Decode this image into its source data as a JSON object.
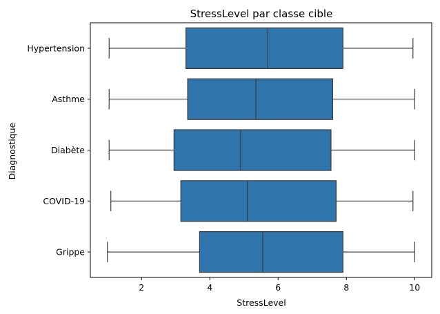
{
  "chart_data": {
    "type": "boxplot",
    "orientation": "horizontal",
    "title": "StressLevel par classe cible",
    "xlabel": "StressLevel",
    "ylabel": "Diagnostique",
    "xlim": [
      0.5,
      10.5
    ],
    "xticks": [
      2,
      4,
      6,
      8,
      10
    ],
    "grid": false,
    "box_color": "#2e74ad",
    "line_color": "#3d3d3d",
    "categories": [
      "Hypertension",
      "Asthme",
      "Diabète",
      "COVID-19",
      "Grippe"
    ],
    "boxes": [
      {
        "label": "Hypertension",
        "whislo": 1.05,
        "q1": 3.3,
        "med": 5.7,
        "q3": 7.9,
        "whishi": 9.95
      },
      {
        "label": "Asthme",
        "whislo": 1.05,
        "q1": 3.35,
        "med": 5.35,
        "q3": 7.6,
        "whishi": 10.0
      },
      {
        "label": "Diabète",
        "whislo": 1.05,
        "q1": 2.95,
        "med": 4.9,
        "q3": 7.55,
        "whishi": 10.0
      },
      {
        "label": "COVID-19",
        "whislo": 1.1,
        "q1": 3.15,
        "med": 5.1,
        "q3": 7.7,
        "whishi": 9.95
      },
      {
        "label": "Grippe",
        "whislo": 1.0,
        "q1": 3.7,
        "med": 5.55,
        "q3": 7.9,
        "whishi": 10.0
      }
    ]
  }
}
